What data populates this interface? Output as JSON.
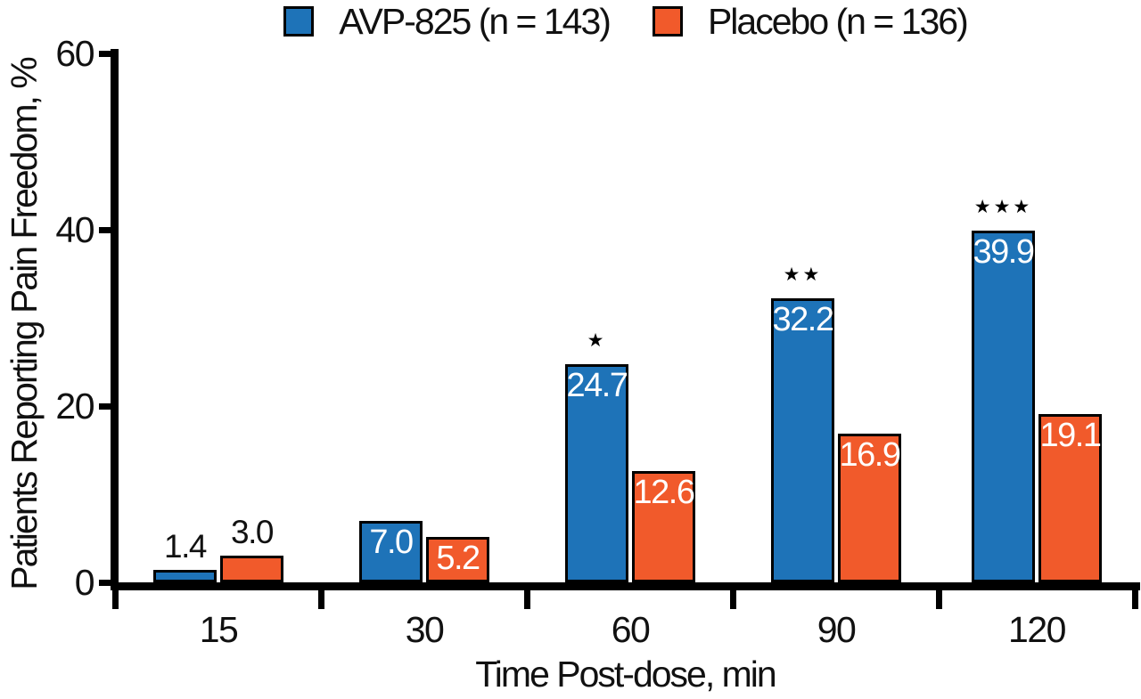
{
  "chart_data": {
    "type": "bar",
    "title": "",
    "xlabel": "Time Post-dose, min",
    "ylabel": "Patients Reporting Pain Freedom, %",
    "categories": [
      "15",
      "30",
      "60",
      "90",
      "120"
    ],
    "series": [
      {
        "name": "AVP-825 (n = 143)",
        "color": "#1e73b8",
        "values": [
          1.4,
          7.0,
          24.7,
          32.2,
          39.9
        ],
        "labels": [
          "1.4",
          "7.0",
          "24.7",
          "32.2",
          "39.9"
        ]
      },
      {
        "name": "Placebo (n = 136)",
        "color": "#f15a2b",
        "values": [
          3.0,
          5.2,
          12.6,
          16.9,
          19.1
        ],
        "labels": [
          "3.0",
          "5.2",
          "12.6",
          "16.9",
          "19.1"
        ]
      }
    ],
    "significance_markers": [
      "",
      "",
      "*",
      "**",
      "***"
    ],
    "ylim": [
      0,
      60
    ],
    "yticks": [
      0,
      20,
      40,
      60
    ],
    "legend_position": "top",
    "grid": false,
    "axis_color": "#000000",
    "bar_border_color": "#000000",
    "inside_value_color": "#ffffff",
    "outside_value_color": "#111111"
  }
}
